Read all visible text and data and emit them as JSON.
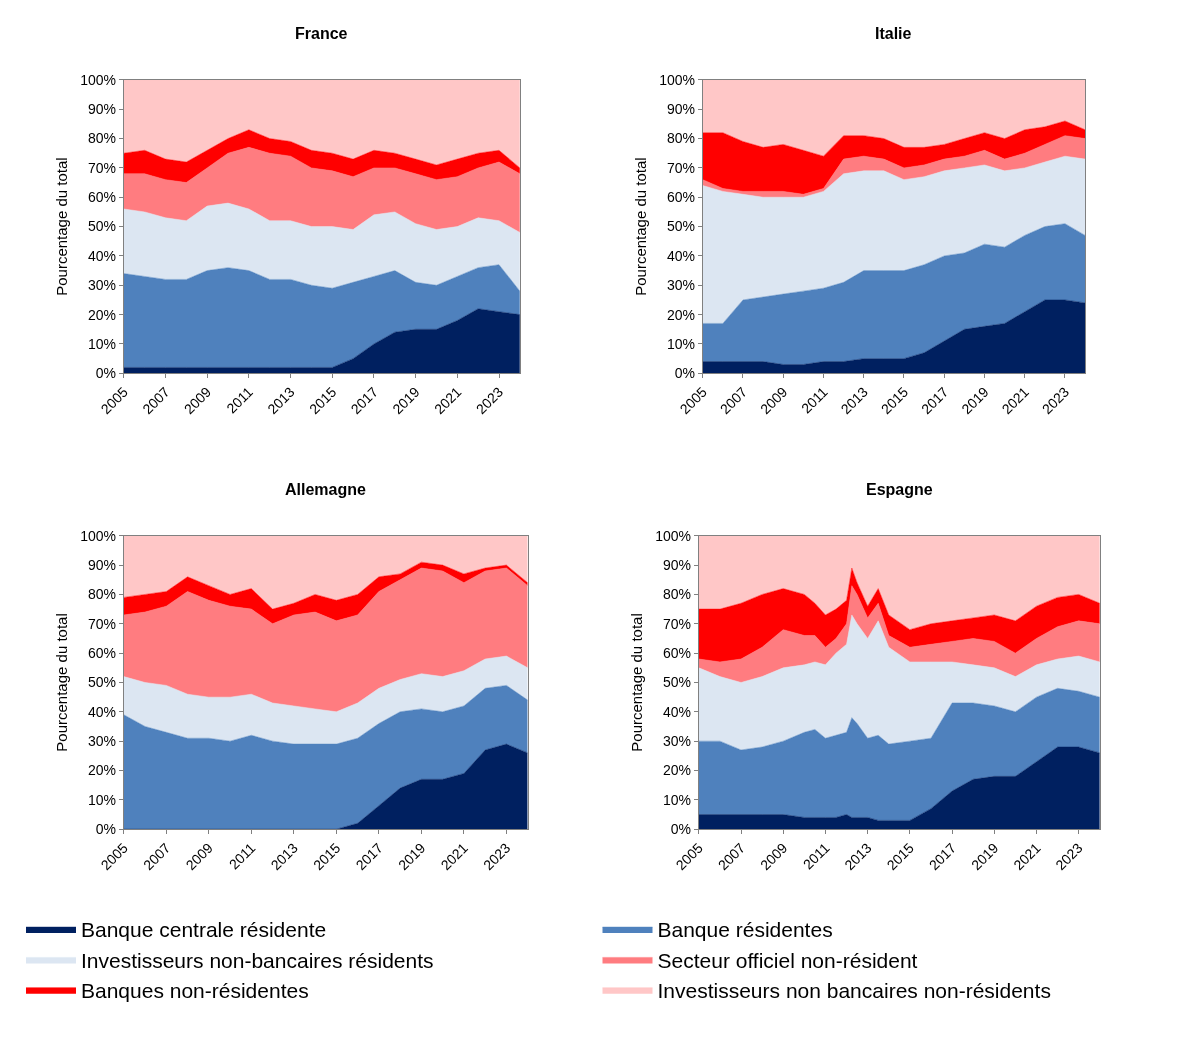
{
  "chart_data": [
    {
      "type": "area",
      "stacked": true,
      "title": "France",
      "ylabel": "Pourcentage du total",
      "legend": "bottom",
      "x": [
        2005,
        2006,
        2007,
        2008,
        2009,
        2010,
        2011,
        2012,
        2013,
        2014,
        2015,
        2016,
        2017,
        2018,
        2019,
        2020,
        2021,
        2022,
        2023,
        2024
      ],
      "xlim": [
        2005,
        2024
      ],
      "xticks": [
        2005,
        2007,
        2009,
        2011,
        2013,
        2015,
        2017,
        2019,
        2021,
        2023
      ],
      "ylim": [
        0,
        100
      ],
      "yticks": [
        {
          "value": 0,
          "label": "0%"
        },
        {
          "value": 10,
          "label": "10%"
        },
        {
          "value": 20,
          "label": "20%"
        },
        {
          "value": 30,
          "label": "30%"
        },
        {
          "value": 40,
          "label": "40%"
        },
        {
          "value": 50,
          "label": "50%"
        },
        {
          "value": 60,
          "label": "60%"
        },
        {
          "value": 70,
          "label": "70%"
        },
        {
          "value": 80,
          "label": "80%"
        },
        {
          "value": 90,
          "label": "90%"
        },
        {
          "value": 100,
          "label": "100%"
        }
      ],
      "series": [
        {
          "name": "Banque centrale résidente",
          "color": "#002060",
          "values": [
            2,
            2,
            2,
            2,
            2,
            2,
            2,
            2,
            2,
            2,
            2,
            5,
            10,
            14,
            15,
            15,
            18,
            22,
            21,
            20
          ]
        },
        {
          "name": "Banque résidentes",
          "color": "#4f81bd",
          "values": [
            32,
            31,
            30,
            30,
            33,
            34,
            33,
            30,
            30,
            28,
            27,
            26,
            23,
            21,
            16,
            15,
            15,
            14,
            16,
            8
          ]
        },
        {
          "name": "Investisseurs non-bancaires résidents",
          "color": "#dce6f2",
          "values": [
            22,
            22,
            21,
            20,
            22,
            22,
            21,
            20,
            20,
            20,
            21,
            18,
            21,
            20,
            20,
            19,
            17,
            17,
            15,
            20
          ]
        },
        {
          "name": "Secteur officiel non-résident",
          "color": "#ff7c80",
          "values": [
            12,
            13,
            13,
            13,
            13,
            17,
            21,
            23,
            22,
            20,
            19,
            18,
            16,
            15,
            17,
            17,
            17,
            17,
            20,
            20
          ]
        },
        {
          "name": "Banques non-résidentes",
          "color": "#ff0000",
          "values": [
            7,
            8,
            7,
            7,
            6,
            5,
            6,
            5,
            5,
            6,
            6,
            6,
            6,
            5,
            5,
            5,
            6,
            5,
            4,
            2
          ]
        },
        {
          "name": "Investisseurs non bancaires non-résidents",
          "color": "#ffc7c7",
          "values": [
            25,
            24,
            27,
            28,
            24,
            20,
            17,
            20,
            21,
            24,
            25,
            27,
            24,
            25,
            27,
            29,
            27,
            25,
            24,
            30
          ]
        }
      ]
    },
    {
      "type": "area",
      "stacked": true,
      "title": "Italie",
      "ylabel": "Pourcentage du total",
      "x": [
        2005,
        2006,
        2007,
        2008,
        2009,
        2010,
        2011,
        2012,
        2013,
        2014,
        2015,
        2016,
        2017,
        2018,
        2019,
        2020,
        2021,
        2022,
        2023,
        2024
      ],
      "xlim": [
        2005,
        2024
      ],
      "xticks": [
        2005,
        2007,
        2009,
        2011,
        2013,
        2015,
        2017,
        2019,
        2021,
        2023
      ],
      "ylim": [
        0,
        100
      ],
      "yticks": [
        {
          "value": 0,
          "label": "0%"
        },
        {
          "value": 10,
          "label": "10%"
        },
        {
          "value": 20,
          "label": "20%"
        },
        {
          "value": 30,
          "label": "30%"
        },
        {
          "value": 40,
          "label": "40%"
        },
        {
          "value": 50,
          "label": "50%"
        },
        {
          "value": 60,
          "label": "60%"
        },
        {
          "value": 70,
          "label": "70%"
        },
        {
          "value": 80,
          "label": "80%"
        },
        {
          "value": 90,
          "label": "90%"
        },
        {
          "value": 100,
          "label": "100%"
        }
      ],
      "series": [
        {
          "color": "#002060",
          "values": [
            4,
            4,
            4,
            4,
            3,
            3,
            4,
            4,
            5,
            5,
            5,
            7,
            11,
            15,
            16,
            17,
            21,
            25,
            25,
            24
          ]
        },
        {
          "color": "#4f81bd",
          "values": [
            13,
            13,
            21,
            22,
            24,
            25,
            25,
            27,
            30,
            30,
            30,
            30,
            29,
            26,
            28,
            26,
            26,
            25,
            26,
            23
          ]
        },
        {
          "color": "#dce6f2",
          "values": [
            47,
            45,
            36,
            34,
            33,
            32,
            33,
            37,
            34,
            34,
            31,
            30,
            29,
            29,
            27,
            26,
            23,
            22,
            23,
            26
          ]
        },
        {
          "color": "#ff7c80",
          "values": [
            2,
            1,
            1,
            2,
            2,
            1,
            1,
            5,
            5,
            4,
            4,
            4,
            4,
            4,
            5,
            4,
            5,
            6,
            7,
            7
          ]
        },
        {
          "color": "#ff0000",
          "values": [
            16,
            19,
            17,
            15,
            16,
            15,
            11,
            8,
            7,
            7,
            7,
            6,
            5,
            6,
            6,
            7,
            8,
            6,
            5,
            3
          ]
        },
        {
          "color": "#ffc7c7",
          "values": [
            18,
            18,
            21,
            23,
            22,
            24,
            26,
            19,
            19,
            20,
            23,
            23,
            22,
            20,
            18,
            20,
            17,
            16,
            14,
            17
          ]
        }
      ]
    },
    {
      "type": "area",
      "stacked": true,
      "title": "Allemagne",
      "ylabel": "Pourcentage du total",
      "x": [
        2005,
        2006,
        2007,
        2008,
        2009,
        2010,
        2011,
        2012,
        2013,
        2014,
        2015,
        2016,
        2017,
        2018,
        2019,
        2020,
        2021,
        2022,
        2023,
        2024
      ],
      "xlim": [
        2005,
        2024
      ],
      "xticks": [
        2005,
        2007,
        2009,
        2011,
        2013,
        2015,
        2017,
        2019,
        2021,
        2023
      ],
      "ylim": [
        0,
        100
      ],
      "yticks": [
        {
          "value": 0,
          "label": "0%"
        },
        {
          "value": 10,
          "label": "10%"
        },
        {
          "value": 20,
          "label": "20%"
        },
        {
          "value": 30,
          "label": "30%"
        },
        {
          "value": 40,
          "label": "40%"
        },
        {
          "value": 50,
          "label": "50%"
        },
        {
          "value": 60,
          "label": "60%"
        },
        {
          "value": 70,
          "label": "70%"
        },
        {
          "value": 80,
          "label": "80%"
        },
        {
          "value": 90,
          "label": "90%"
        },
        {
          "value": 100,
          "label": "100%"
        }
      ],
      "series": [
        {
          "color": "#002060",
          "values": [
            0,
            0,
            0,
            0,
            0,
            0,
            0,
            0,
            0,
            0,
            0,
            2,
            8,
            14,
            17,
            17,
            19,
            27,
            29,
            26
          ]
        },
        {
          "color": "#4f81bd",
          "values": [
            39,
            35,
            33,
            31,
            31,
            30,
            32,
            30,
            29,
            29,
            29,
            29,
            28,
            26,
            24,
            23,
            23,
            21,
            20,
            18
          ]
        },
        {
          "color": "#dce6f2",
          "values": [
            13,
            15,
            16,
            15,
            14,
            15,
            14,
            13,
            13,
            12,
            11,
            12,
            12,
            11,
            12,
            12,
            12,
            10,
            10,
            11
          ]
        },
        {
          "color": "#ff7c80",
          "values": [
            21,
            24,
            27,
            35,
            33,
            31,
            29,
            27,
            31,
            33,
            31,
            30,
            33,
            34,
            36,
            36,
            30,
            30,
            30,
            28
          ]
        },
        {
          "color": "#ff0000",
          "values": [
            6,
            6,
            5,
            5,
            5,
            4,
            7,
            5,
            4,
            6,
            7,
            7,
            5,
            2,
            2,
            2,
            3,
            1,
            1,
            1
          ]
        },
        {
          "color": "#ffc7c7",
          "values": [
            21,
            20,
            19,
            14,
            17,
            20,
            18,
            25,
            23,
            20,
            22,
            20,
            14,
            13,
            9,
            10,
            13,
            11,
            10,
            16
          ]
        }
      ]
    },
    {
      "type": "area",
      "stacked": true,
      "title": "Espagne",
      "ylabel": "Pourcentage du total",
      "x": [
        2005,
        2006,
        2007,
        2008,
        2009,
        2010,
        2010.5,
        2011,
        2011.5,
        2012,
        2012.25,
        2012.5,
        2013,
        2013.5,
        2014,
        2015,
        2016,
        2017,
        2018,
        2019,
        2020,
        2021,
        2022,
        2023,
        2024
      ],
      "xlim": [
        2005,
        2024
      ],
      "xticks": [
        2005,
        2007,
        2009,
        2011,
        2013,
        2015,
        2017,
        2019,
        2021,
        2023
      ],
      "ylim": [
        0,
        100
      ],
      "yticks": [
        {
          "value": 0,
          "label": "0%"
        },
        {
          "value": 10,
          "label": "10%"
        },
        {
          "value": 20,
          "label": "20%"
        },
        {
          "value": 30,
          "label": "30%"
        },
        {
          "value": 40,
          "label": "40%"
        },
        {
          "value": 50,
          "label": "50%"
        },
        {
          "value": 60,
          "label": "60%"
        },
        {
          "value": 70,
          "label": "70%"
        },
        {
          "value": 80,
          "label": "80%"
        },
        {
          "value": 90,
          "label": "90%"
        },
        {
          "value": 100,
          "label": "100%"
        }
      ],
      "series": [
        {
          "color": "#002060",
          "values": [
            5,
            5,
            5,
            5,
            5,
            4,
            4,
            4,
            4,
            5,
            4,
            4,
            4,
            3,
            3,
            3,
            7,
            13,
            17,
            18,
            18,
            23,
            28,
            28,
            26
          ]
        },
        {
          "color": "#4f81bd",
          "values": [
            25,
            25,
            22,
            23,
            25,
            29,
            30,
            27,
            28,
            28,
            34,
            32,
            27,
            29,
            26,
            27,
            24,
            30,
            26,
            24,
            22,
            22,
            20,
            19,
            19
          ]
        },
        {
          "color": "#dce6f2",
          "values": [
            25,
            22,
            23,
            24,
            25,
            23,
            23,
            25,
            28,
            30,
            35,
            34,
            34,
            39,
            33,
            27,
            26,
            14,
            13,
            13,
            12,
            11,
            10,
            12,
            12
          ]
        },
        {
          "color": "#ff7c80",
          "values": [
            3,
            5,
            8,
            10,
            13,
            10,
            9,
            6,
            5,
            7,
            10,
            10,
            7,
            6,
            4,
            5,
            6,
            7,
            9,
            9,
            8,
            9,
            11,
            12,
            13
          ]
        },
        {
          "color": "#ff0000",
          "values": [
            17,
            18,
            19,
            18,
            14,
            14,
            11,
            11,
            10,
            8,
            6,
            4,
            4,
            5,
            7,
            6,
            7,
            7,
            7,
            9,
            11,
            11,
            10,
            9,
            7
          ]
        },
        {
          "color": "#ffc7c7",
          "values": [
            25,
            25,
            23,
            20,
            18,
            20,
            23,
            27,
            25,
            22,
            11,
            16,
            24,
            18,
            27,
            32,
            30,
            29,
            28,
            27,
            29,
            24,
            21,
            20,
            23
          ]
        }
      ]
    }
  ]
}
